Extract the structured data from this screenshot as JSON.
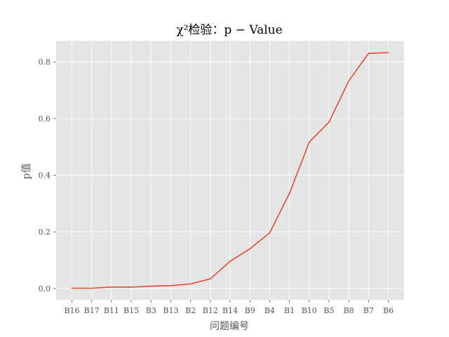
{
  "chart_data": {
    "type": "line",
    "title": "χ²检验：p − Value",
    "xlabel": "问题编号",
    "ylabel": "p值",
    "categories": [
      "B16",
      "B17",
      "B11",
      "B15",
      "B3",
      "B13",
      "B2",
      "B12",
      "B14",
      "B9",
      "B4",
      "B1",
      "B10",
      "B5",
      "B8",
      "B7",
      "B6"
    ],
    "series": [
      {
        "values": [
          0.001,
          0.001,
          0.005,
          0.005,
          0.008,
          0.01,
          0.016,
          0.034,
          0.096,
          0.14,
          0.196,
          0.336,
          0.517,
          0.587,
          0.733,
          0.83,
          0.833
        ],
        "color": "#E24A33"
      }
    ],
    "ylim": [
      -0.04,
      0.875
    ],
    "yticks": [
      0.0,
      0.2,
      0.4,
      0.6,
      0.8
    ],
    "ytick_labels": [
      "0.0",
      "0.2",
      "0.4",
      "0.6",
      "0.8"
    ],
    "grid": true,
    "style": {
      "plot_background": "#E5E5E5",
      "grid_color": "#FFFFFF",
      "tick_label_color": "#555555"
    }
  }
}
